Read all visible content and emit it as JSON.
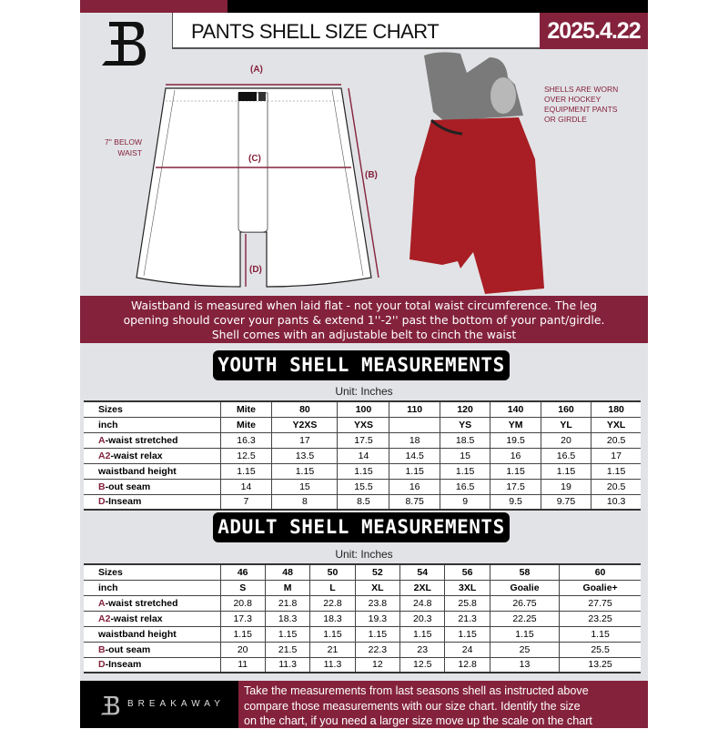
{
  "header": {
    "title": "PANTS SHELL SIZE CHART",
    "date": "2025.4.22",
    "brand_logo": "B"
  },
  "diagram": {
    "labels": {
      "a": "(A)",
      "b": "(B)",
      "c": "(C)",
      "d": "(D)"
    },
    "below_waist_note": [
      "7'' BELOW",
      "WAIST"
    ],
    "shells_note": [
      "SHELLS ARE WORN",
      "OVER HOCKEY",
      "EQUIPMENT PANTS",
      "OR GIRDLE"
    ],
    "colors": {
      "accent": "#84223c",
      "shell": "#a81e24"
    }
  },
  "banner": {
    "lines": [
      "Waistband is measured when laid flat - not your total waist circumference. The leg",
      "opening should cover your pants & extend 1''-2'' past the bottom of your pant/girdle.",
      "Shell comes with an adjustable belt to cinch the waist"
    ]
  },
  "youth": {
    "heading": "YOUTH SHELL MEASUREMENTS",
    "unit": "Unit: Inches",
    "rows": [
      {
        "prefix": "",
        "label": "Sizes",
        "values": [
          "Mite",
          "80",
          "100",
          "110",
          "120",
          "140",
          "160",
          "180"
        ]
      },
      {
        "prefix": "",
        "label": "inch",
        "values": [
          "Mite",
          "Y2XS",
          "YXS",
          "",
          "YS",
          "YM",
          "YL",
          "YXL"
        ]
      },
      {
        "prefix": "A",
        "label": "-waist stretched",
        "values": [
          "16.3",
          "17",
          "17.5",
          "18",
          "18.5",
          "19.5",
          "20",
          "20.5"
        ]
      },
      {
        "prefix": "A2",
        "label": "-waist relax",
        "values": [
          "12.5",
          "13.5",
          "14",
          "14.5",
          "15",
          "16",
          "16.5",
          "17"
        ]
      },
      {
        "prefix": "",
        "label": "waistband height",
        "values": [
          "1.15",
          "1.15",
          "1.15",
          "1.15",
          "1.15",
          "1.15",
          "1.15",
          "1.15"
        ]
      },
      {
        "prefix": "B",
        "label": "-out seam",
        "values": [
          "14",
          "15",
          "15.5",
          "16",
          "16.5",
          "17.5",
          "19",
          "20.5"
        ]
      },
      {
        "prefix": "D",
        "label": "-Inseam",
        "values": [
          "7",
          "8",
          "8.5",
          "8.75",
          "9",
          "9.5",
          "9.75",
          "10.3"
        ]
      }
    ]
  },
  "adult": {
    "heading": "ADULT SHELL MEASUREMENTS",
    "unit": "Unit: Inches",
    "rows": [
      {
        "prefix": "",
        "label": "Sizes",
        "values": [
          "46",
          "48",
          "50",
          "52",
          "54",
          "56",
          "58",
          "60"
        ]
      },
      {
        "prefix": "",
        "label": "inch",
        "values": [
          "S",
          "M",
          "L",
          "XL",
          "2XL",
          "3XL",
          "Goalie",
          "Goalie+"
        ]
      },
      {
        "prefix": "A",
        "label": "-waist stretched",
        "values": [
          "20.8",
          "21.8",
          "22.8",
          "23.8",
          "24.8",
          "25.8",
          "26.75",
          "27.75"
        ]
      },
      {
        "prefix": "A2",
        "label": "-waist relax",
        "values": [
          "17.3",
          "18.3",
          "18.3",
          "19.3",
          "20.3",
          "21.3",
          "22.25",
          "23.25"
        ]
      },
      {
        "prefix": "",
        "label": "waistband height",
        "values": [
          "1.15",
          "1.15",
          "1.15",
          "1.15",
          "1.15",
          "1.15",
          "1.15",
          "1.15"
        ]
      },
      {
        "prefix": "B",
        "label": "-out seam",
        "values": [
          "20",
          "21.5",
          "21",
          "22.3",
          "23",
          "24",
          "25",
          "25.5"
        ]
      },
      {
        "prefix": "D",
        "label": "-Inseam",
        "values": [
          "11",
          "11.3",
          "11.3",
          "12",
          "12.5",
          "12.8",
          "13",
          "13.25"
        ]
      }
    ]
  },
  "footer": {
    "brand": "BREAKAWAY",
    "lines": [
      "Take the measurements from last seasons shell as instructed above",
      "compare those measurements  with our size chart. Identify the size",
      "on the chart, if you need a larger size move up the scale on the chart"
    ]
  }
}
